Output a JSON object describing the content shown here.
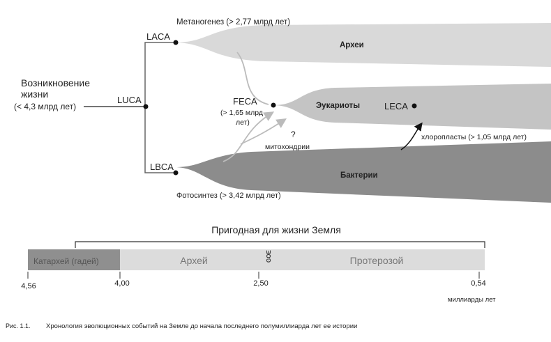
{
  "tree": {
    "origin": {
      "line1": "Возникновение",
      "line2": "жизни",
      "line3": "(< 4,3 млрд лет)"
    },
    "luca": "LUCA",
    "laca": "LACA",
    "lbca": "LBCA",
    "feca": {
      "name": "FECA",
      "line2": "(> 1,65 млрд",
      "line3": "лет)"
    },
    "leca": "LECA",
    "methanogenesis": "Метаногенез (> 2,77 млрд лет)",
    "photosynthesis": "Фотосинтез (> 3,42 млрд  лет)",
    "mitochondria_q": "?",
    "mitochondria": "митохондрии",
    "chloroplasts": "хлоропласты (> 1,05 млрд  лет)",
    "archaea": "Археи",
    "eukaryotes": "Эукариоты",
    "bacteria": "Бактерии"
  },
  "timeline": {
    "title": "Пригодная для жизни Земля",
    "eons": [
      "Катархей  (гадей)",
      "Архей",
      "Протерозой"
    ],
    "goe": "GOE",
    "ticks": [
      "4,56",
      "4,00",
      "2,50",
      "0,54"
    ],
    "unit": "миллиарды лет"
  },
  "caption": {
    "number": "Рис. 1.1.",
    "text": "Хронология эволюционных событий на Земле до начала последнего полумиллиарда лет ее истории"
  },
  "colors": {
    "archaea": "#d9d9d9",
    "eukaryotes": "#c4c4c4",
    "bacteria": "#8c8c8c",
    "hadean": "#8f8f8f",
    "eon_light": "#dcdcdc"
  }
}
